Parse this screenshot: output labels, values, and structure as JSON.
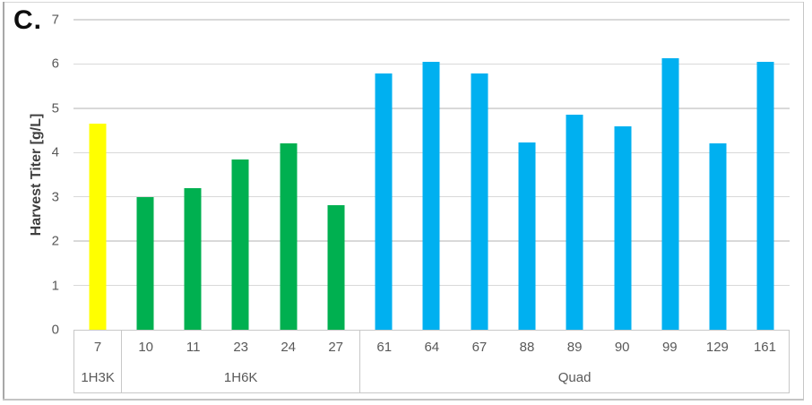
{
  "panel_label": "C.",
  "chart_data": {
    "type": "bar",
    "title": "",
    "xlabel": "",
    "ylabel": "Harvest Titer [g/L]",
    "ylim": [
      0,
      7
    ],
    "ytick_step": 1,
    "yticks": [
      0,
      1,
      2,
      3,
      4,
      5,
      6,
      7
    ],
    "grid": true,
    "legend": "none",
    "groups": [
      {
        "name": "1H3K",
        "color": "#FFFF00",
        "categories": [
          "7"
        ],
        "values": [
          4.65
        ]
      },
      {
        "name": "1H6K",
        "color": "#00B050",
        "categories": [
          "10",
          "11",
          "23",
          "24",
          "27"
        ],
        "values": [
          3.0,
          3.2,
          3.85,
          4.2,
          2.82
        ]
      },
      {
        "name": "Quad",
        "color": "#00B0F0",
        "categories": [
          "61",
          "64",
          "67",
          "88",
          "89",
          "90",
          "99",
          "129",
          "161"
        ],
        "values": [
          5.78,
          6.05,
          5.78,
          4.23,
          4.86,
          4.6,
          6.13,
          4.2,
          6.05
        ]
      }
    ],
    "colors": {
      "gridline": "#d9d9d9",
      "axis_text": "#595959",
      "axis_title_text": "#3f3f3f",
      "table_border": "#c8c8c8",
      "background": "#ffffff"
    }
  }
}
